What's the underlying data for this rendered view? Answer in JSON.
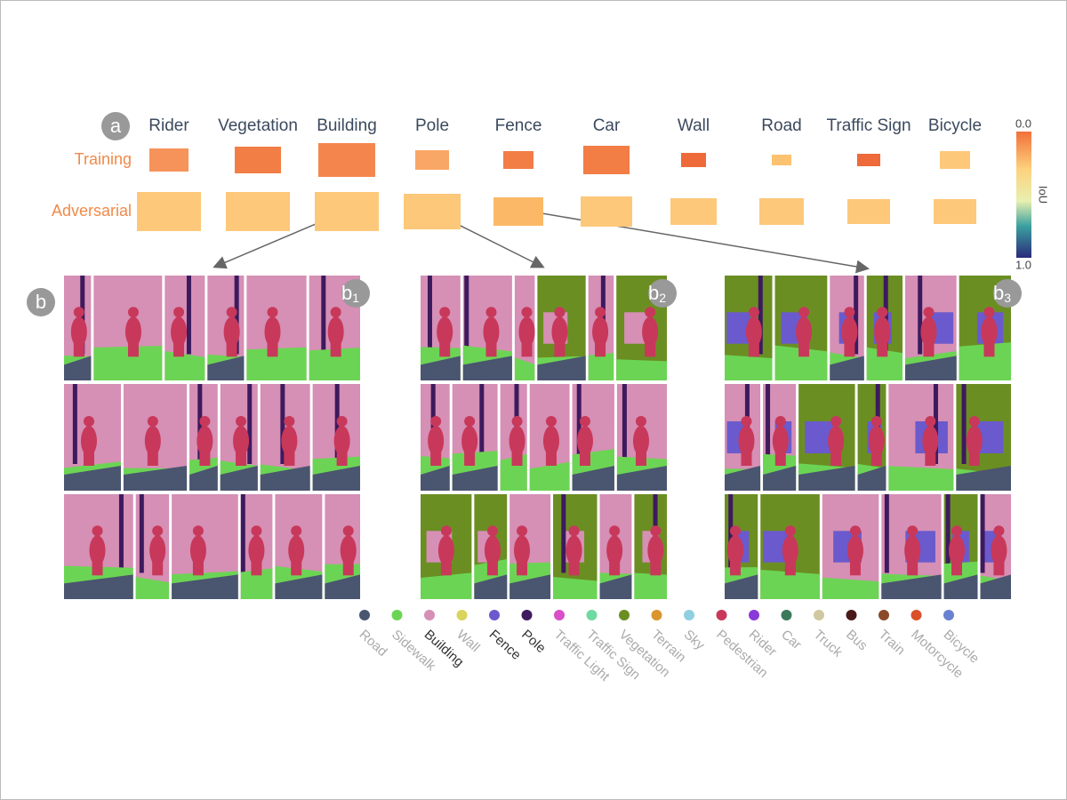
{
  "labels": {
    "panel_a": "a",
    "panel_b": "b"
  },
  "columns": [
    "Rider",
    "Vegetation",
    "Building",
    "Pole",
    "Fence",
    "Car",
    "Wall",
    "Road",
    "Traffic Sign",
    "Bicycle"
  ],
  "rows": [
    "Training",
    "Adversarial"
  ],
  "colorbar": {
    "min": "0.0",
    "max": "1.0",
    "label": "IoU"
  },
  "groups": [
    {
      "label": "b",
      "sub": "1"
    },
    {
      "label": "b",
      "sub": "2"
    },
    {
      "label": "b",
      "sub": "3"
    }
  ],
  "legend": [
    {
      "label": "Road",
      "color": "#4a5570"
    },
    {
      "label": "Sidewalk",
      "color": "#6cd454"
    },
    {
      "label": "Building",
      "color": "#d68fb5"
    },
    {
      "label": "Wall",
      "color": "#d9d45a"
    },
    {
      "label": "Fence",
      "color": "#6a5acd"
    },
    {
      "label": "Pole",
      "color": "#3d1a5e"
    },
    {
      "label": "Traffic Light",
      "color": "#d94fc8"
    },
    {
      "label": "Traffic Sign",
      "color": "#6ed9a0"
    },
    {
      "label": "Vegetation",
      "color": "#6b8e23"
    },
    {
      "label": "Terrain",
      "color": "#d9952e"
    },
    {
      "label": "Sky",
      "color": "#8fd0e0"
    },
    {
      "label": "Pedestrian",
      "color": "#c8385a"
    },
    {
      "label": "Rider",
      "color": "#8a3ad9"
    },
    {
      "label": "Car",
      "color": "#3a7a5a"
    },
    {
      "label": "Truck",
      "color": "#d0c8a0"
    },
    {
      "label": "Bus",
      "color": "#4a1a1a"
    },
    {
      "label": "Train",
      "color": "#8a4a2a"
    },
    {
      "label": "Motorcycle",
      "color": "#d9502a"
    },
    {
      "label": "Bicycle",
      "color": "#6a80d0"
    }
  ]
}
